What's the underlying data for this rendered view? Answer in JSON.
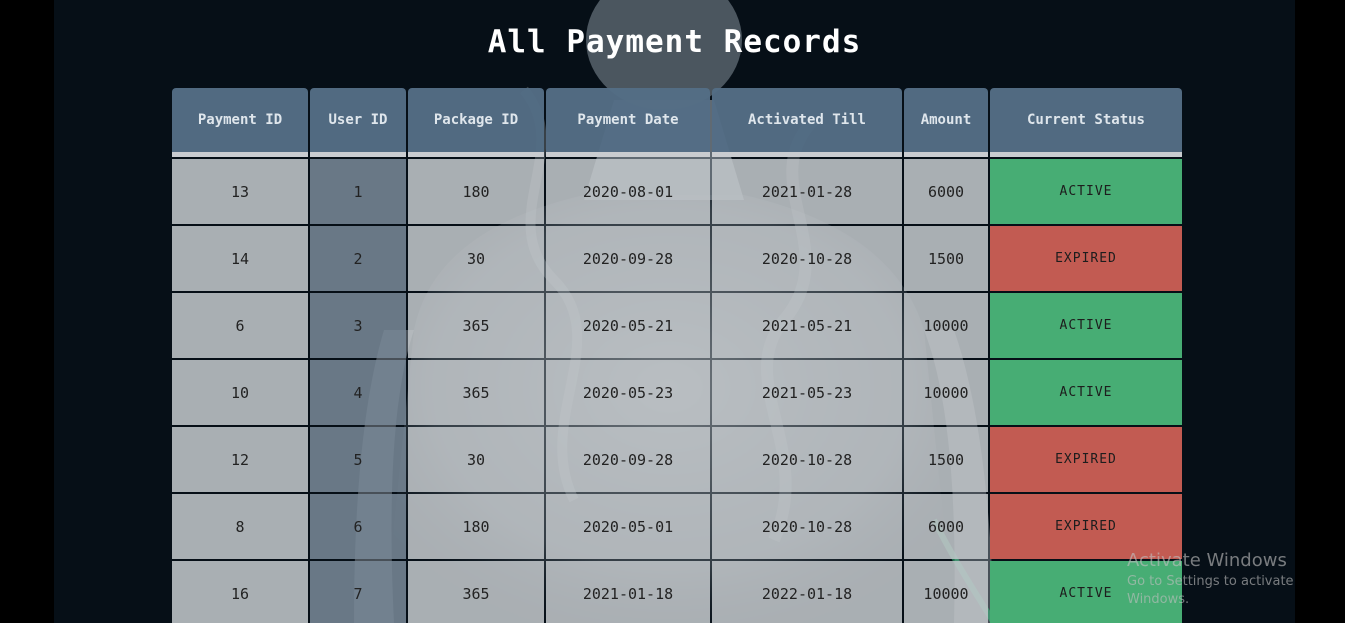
{
  "page": {
    "title": "All Payment Records"
  },
  "table": {
    "headers": [
      "Payment ID",
      "User ID",
      "Package ID",
      "Payment Date",
      "Activated Till",
      "Amount",
      "Current Status"
    ],
    "rows": [
      [
        "13",
        "1",
        "180",
        "2020-08-01",
        "2021-01-28",
        "6000",
        "ACTIVE"
      ],
      [
        "14",
        "2",
        "30",
        "2020-09-28",
        "2020-10-28",
        "1500",
        "EXPIRED"
      ],
      [
        "6",
        "3",
        "365",
        "2020-05-21",
        "2021-05-21",
        "10000",
        "ACTIVE"
      ],
      [
        "10",
        "4",
        "365",
        "2020-05-23",
        "2021-05-23",
        "10000",
        "ACTIVE"
      ],
      [
        "12",
        "5",
        "30",
        "2020-09-28",
        "2020-10-28",
        "1500",
        "EXPIRED"
      ],
      [
        "8",
        "6",
        "180",
        "2020-05-01",
        "2020-10-28",
        "6000",
        "EXPIRED"
      ],
      [
        "16",
        "7",
        "365",
        "2021-01-18",
        "2022-01-18",
        "10000",
        "ACTIVE"
      ]
    ]
  },
  "status_colors": {
    "ACTIVE": "#47ad74",
    "EXPIRED": "#c25b52"
  },
  "watermark": {
    "title": "Activate Windows",
    "subtitle": "Go to Settings to activate Windows."
  }
}
